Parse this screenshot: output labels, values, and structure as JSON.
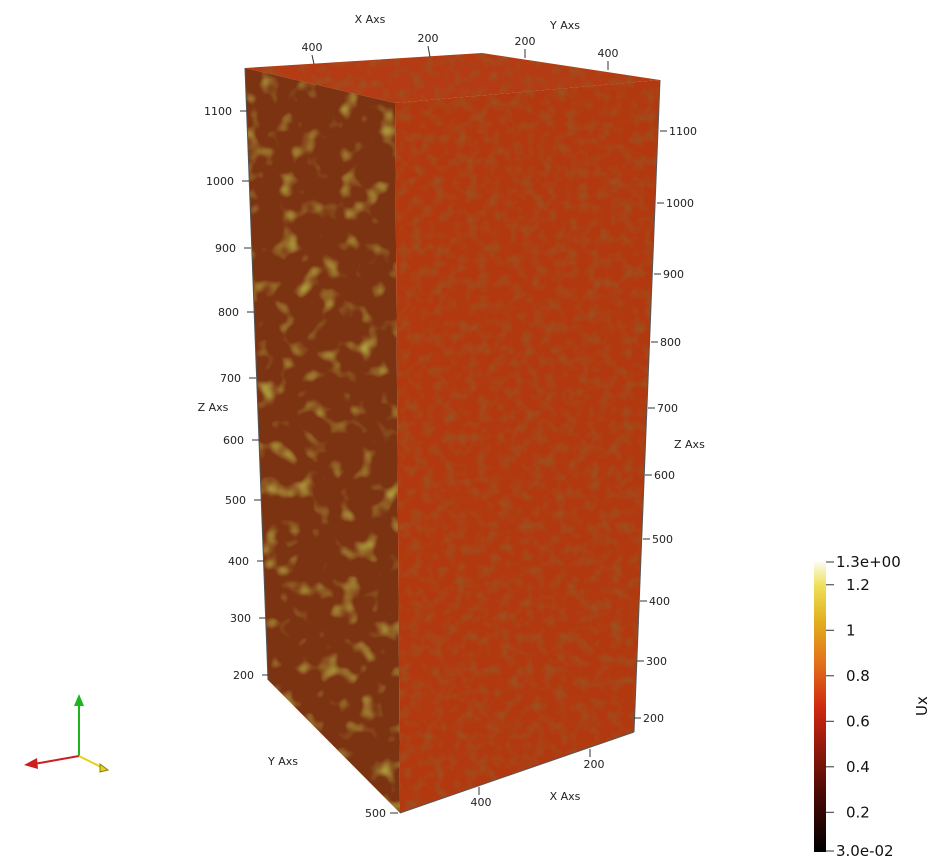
{
  "axes": {
    "x_title": "X Axs",
    "y_title": "Y Axs",
    "z_title": "Z Axs",
    "x_ticks_top": [
      "400",
      "200"
    ],
    "y_ticks_top": [
      "200",
      "400"
    ],
    "z_ticks_left": [
      "1100",
      "1000",
      "900",
      "800",
      "700",
      "600",
      "500",
      "400",
      "300",
      "200"
    ],
    "z_ticks_right": [
      "1100",
      "1000",
      "900",
      "800",
      "700",
      "600",
      "500",
      "400",
      "300",
      "200"
    ],
    "x_ticks_bottom": [
      "200",
      "400"
    ],
    "y_ticks_bottom": [
      "500"
    ]
  },
  "colorbar": {
    "title": "Ux",
    "max_label": "1.3e+00",
    "min_label": "3.0e-02",
    "tick_labels": [
      "1.2",
      "1",
      "0.8",
      "0.6",
      "0.4",
      "0.2"
    ],
    "tick_values": [
      1.2,
      1.0,
      0.8,
      0.6,
      0.4,
      0.2
    ],
    "range": [
      0.03,
      1.3
    ]
  },
  "orientation_axes": {
    "x_color": "#cc1f1f",
    "y_color": "#1fb51f",
    "z_color": "#e6d11f"
  },
  "colors": {
    "front_face": "#b2380f",
    "left_face": "#7b3010",
    "top_face": "#b33a12"
  }
}
